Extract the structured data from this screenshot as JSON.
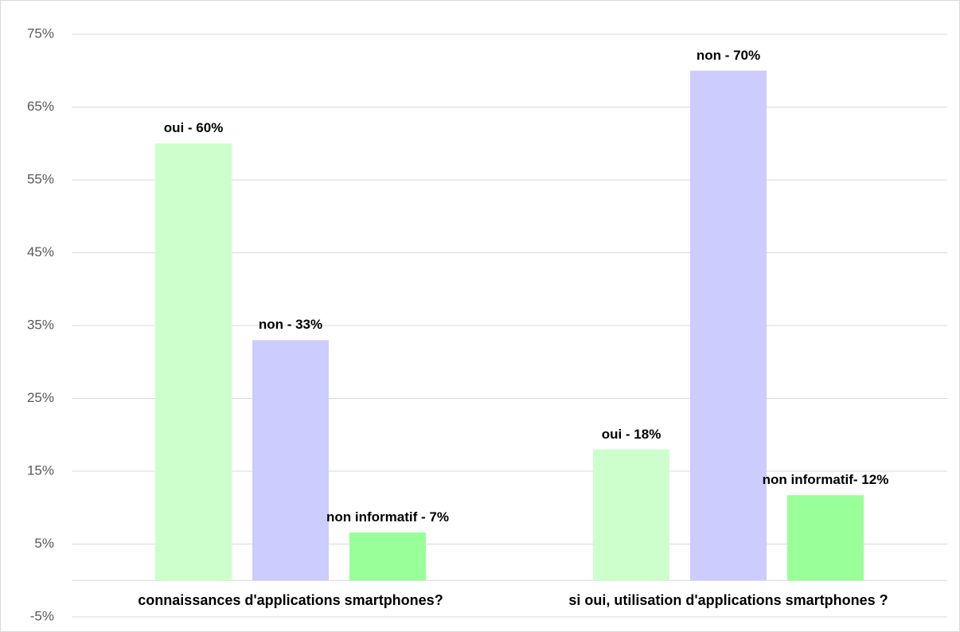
{
  "chart_data": {
    "type": "bar",
    "categories": [
      "connaissances d'applications smartphones?",
      "si oui, utilisation d'applications smartphones ?"
    ],
    "series": [
      {
        "color": "#ccffcc",
        "values": [
          60,
          18
        ],
        "value_labels": [
          "oui - 60%",
          "oui - 18%"
        ]
      },
      {
        "color": "#ccccff",
        "values": [
          33,
          70
        ],
        "value_labels": [
          "non - 33%",
          "non - 70%"
        ]
      },
      {
        "color": "#99ff99",
        "values": [
          6.6,
          11.7
        ],
        "value_labels": [
          "non informatif - 7%",
          "non informatif- 12%"
        ]
      }
    ],
    "ylim": [
      -5,
      75
    ],
    "yticks": [
      {
        "value": -5,
        "label": "-5%"
      },
      {
        "value": 5,
        "label": "5%"
      },
      {
        "value": 15,
        "label": "15%"
      },
      {
        "value": 25,
        "label": "25%"
      },
      {
        "value": 35,
        "label": "35%"
      },
      {
        "value": 45,
        "label": "45%"
      },
      {
        "value": 55,
        "label": "55%"
      },
      {
        "value": 65,
        "label": "65%"
      },
      {
        "value": 75,
        "label": "75%"
      }
    ],
    "grid": true
  }
}
